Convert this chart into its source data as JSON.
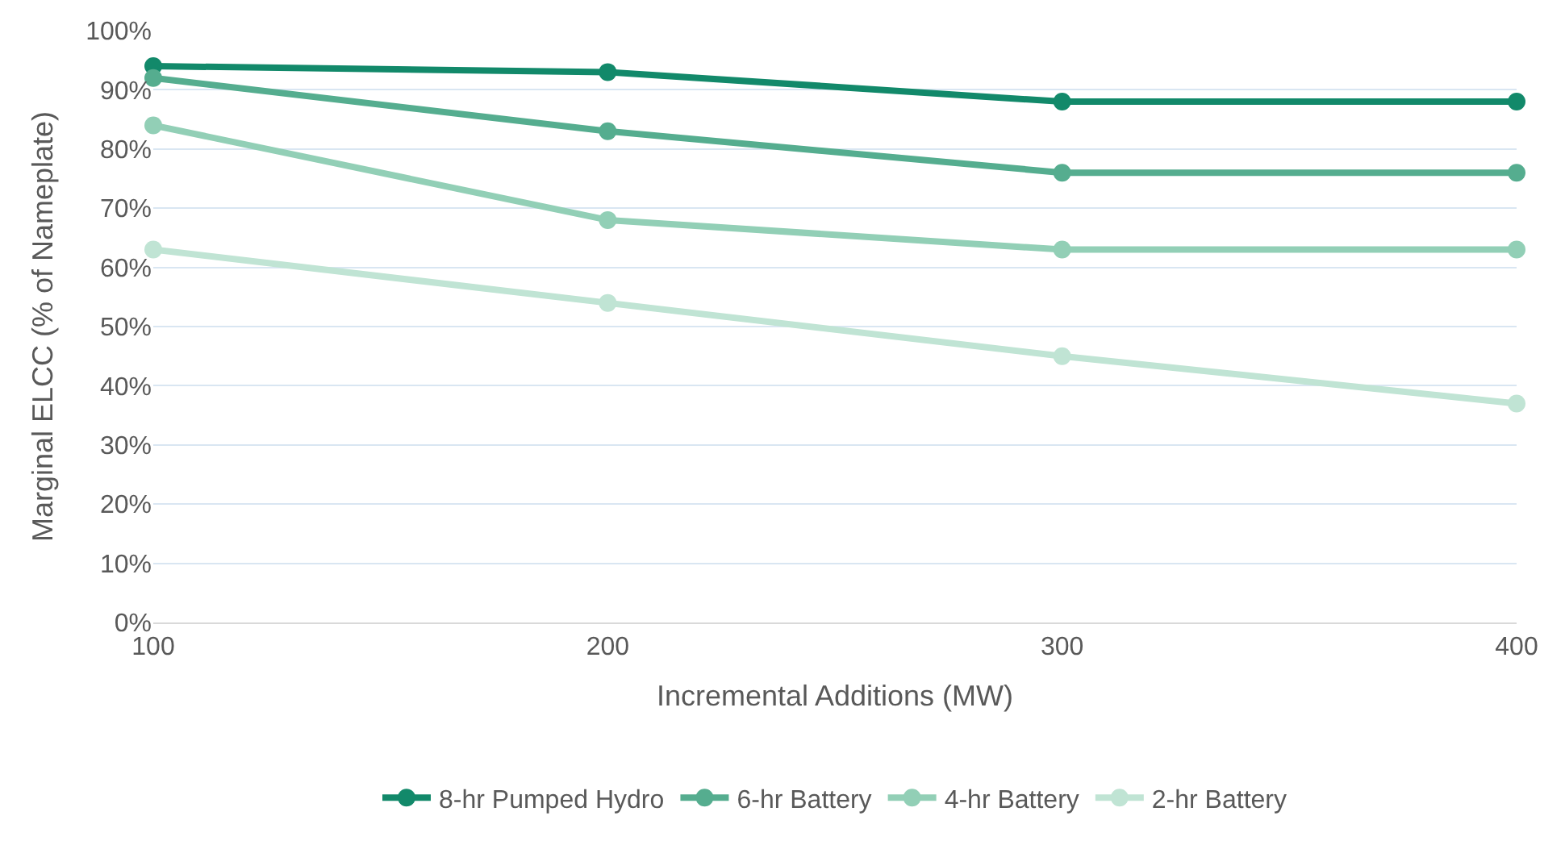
{
  "chart_data": {
    "type": "line",
    "xlabel": "Incremental Additions (MW)",
    "ylabel": "Marginal ELCC (% of Nameplate)",
    "x": [
      100,
      200,
      300,
      400
    ],
    "series": [
      {
        "name": "8-hr Pumped Hydro",
        "color": "#12896a",
        "values": [
          94,
          93,
          88,
          88
        ]
      },
      {
        "name": "6-hr Battery",
        "color": "#55ad8f",
        "values": [
          92,
          83,
          76,
          76
        ]
      },
      {
        "name": "4-hr Battery",
        "color": "#92cfb6",
        "values": [
          84,
          68,
          63,
          63
        ]
      },
      {
        "name": "2-hr Battery",
        "color": "#c0e4d4",
        "values": [
          63,
          54,
          45,
          37
        ]
      }
    ],
    "xlim": [
      100,
      400
    ],
    "xticks": [
      100,
      200,
      300,
      400
    ],
    "ylim": [
      0,
      100
    ],
    "yticks": [
      {
        "value": 0,
        "label": "0%"
      },
      {
        "value": 10,
        "label": "10%"
      },
      {
        "value": 20,
        "label": "20%"
      },
      {
        "value": 30,
        "label": "30%"
      },
      {
        "value": 40,
        "label": "40%"
      },
      {
        "value": 50,
        "label": "50%"
      },
      {
        "value": 60,
        "label": "60%"
      },
      {
        "value": 70,
        "label": "70%"
      },
      {
        "value": 80,
        "label": "80%"
      },
      {
        "value": 90,
        "label": "90%"
      },
      {
        "value": 100,
        "label": "100%"
      }
    ],
    "grid": "y",
    "legend": "bottom",
    "marker": "circle",
    "line_style": "solid"
  }
}
